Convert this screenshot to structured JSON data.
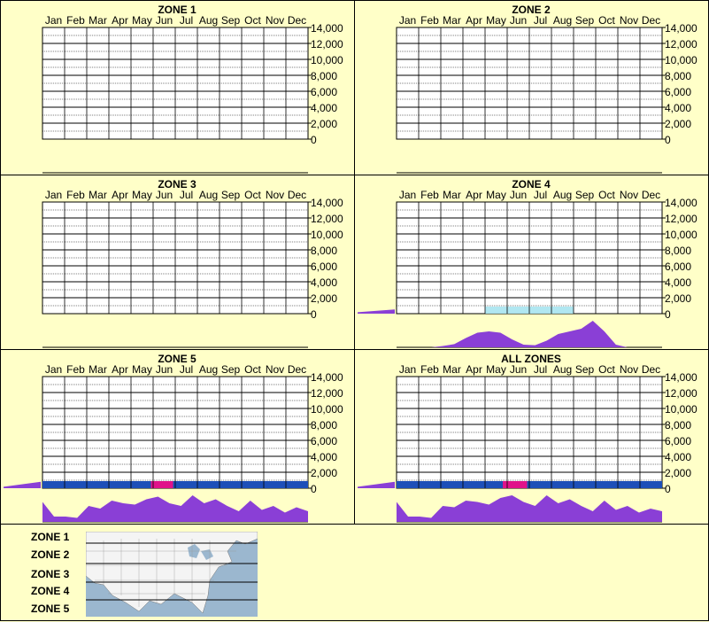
{
  "months": [
    "Jan",
    "Feb",
    "Mar",
    "Apr",
    "May",
    "Jun",
    "Jul",
    "Aug",
    "Sep",
    "Oct",
    "Nov",
    "Dec"
  ],
  "y_ticks": [
    "14,000",
    "12,000",
    "10,000",
    "8,000",
    "6,000",
    "4,000",
    "2,000",
    "0"
  ],
  "legend": {
    "zones": [
      "ZONE 1",
      "ZONE 2",
      "ZONE 3",
      "ZONE 4",
      "ZONE 5"
    ]
  },
  "colors": {
    "background": "#ffffc8",
    "area": "#8a3fd6",
    "heat_low": "#a8e4f0",
    "heat_mid": "#1d4fb8",
    "heat_peak": "#e0128a"
  },
  "chart_data": [
    {
      "type": "heatmap",
      "title": "ZONE 1",
      "x": "months",
      "ylim": [
        0,
        14000
      ],
      "elevation_profile": [],
      "histogram": []
    },
    {
      "type": "heatmap",
      "title": "ZONE 2",
      "x": "months",
      "ylim": [
        0,
        14000
      ],
      "elevation_profile": [],
      "histogram": []
    },
    {
      "type": "heatmap",
      "title": "ZONE 3",
      "x": "months",
      "ylim": [
        0,
        14000
      ],
      "elevation_profile": [],
      "histogram": []
    },
    {
      "type": "heatmap",
      "title": "ZONE 4",
      "x": "months",
      "ylim": [
        0,
        14000
      ],
      "elevation_profile": [
        0.2,
        0.6
      ],
      "heat_bands": [
        {
          "from_month": 4.0,
          "to_month": 8.0,
          "level": "low"
        }
      ],
      "histogram": [
        0,
        0,
        0,
        0,
        0.05,
        0.12,
        0.35,
        0.55,
        0.6,
        0.55,
        0.3,
        0.1,
        0.08,
        0.25,
        0.5,
        0.6,
        0.7,
        1.0,
        0.6,
        0.1,
        0,
        0,
        0,
        0
      ]
    },
    {
      "type": "heatmap",
      "title": "ZONE 5",
      "x": "months",
      "ylim": [
        0,
        14000
      ],
      "elevation_profile": [
        0.2,
        0.9
      ],
      "heat_bands": [
        {
          "from_month": 0,
          "to_month": 12,
          "level": "mid"
        },
        {
          "from_month": 4.9,
          "to_month": 5.9,
          "level": "peak"
        }
      ],
      "histogram": [
        0.75,
        0.2,
        0.2,
        0.15,
        0.6,
        0.5,
        0.8,
        0.7,
        0.65,
        0.85,
        0.95,
        0.7,
        0.6,
        1.0,
        0.7,
        0.85,
        0.6,
        0.4,
        0.8,
        0.45,
        0.6,
        0.35,
        0.55,
        0.4
      ]
    },
    {
      "type": "heatmap",
      "title": "ALL ZONES",
      "x": "months",
      "ylim": [
        0,
        14000
      ],
      "elevation_profile": [
        0.2,
        0.9
      ],
      "heat_bands": [
        {
          "from_month": 0,
          "to_month": 12,
          "level": "mid"
        },
        {
          "from_month": 4.8,
          "to_month": 5.9,
          "level": "peak"
        }
      ],
      "histogram": [
        0.75,
        0.2,
        0.2,
        0.15,
        0.6,
        0.55,
        0.8,
        0.75,
        0.65,
        0.9,
        1.0,
        0.75,
        0.6,
        1.0,
        0.7,
        0.85,
        0.6,
        0.4,
        0.8,
        0.45,
        0.6,
        0.35,
        0.5,
        0.4
      ]
    }
  ]
}
